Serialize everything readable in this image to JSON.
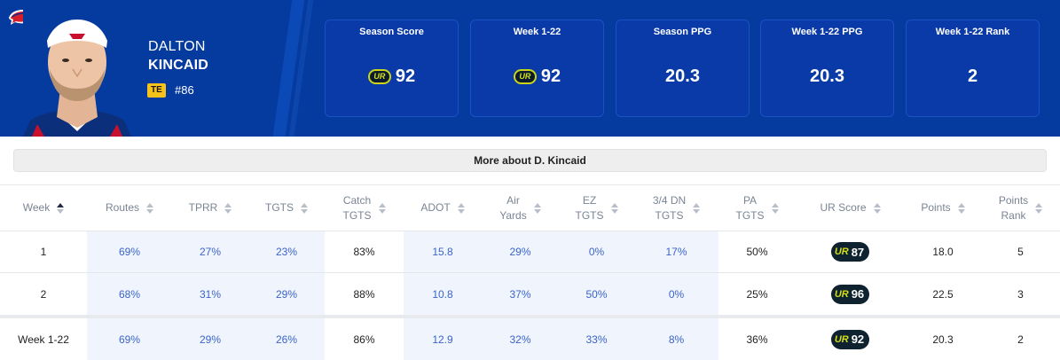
{
  "player": {
    "first_name": "DALTON",
    "last_name": "KINCAID",
    "position": "TE",
    "number": "#86"
  },
  "colors": {
    "header_bg": "#053a9e",
    "card_bg": "#0a3aa8",
    "badge_yellow": "#f6c21b",
    "link_blue": "#3b63c9",
    "highlight": "#f0f5fd",
    "ur_pill": "#0e2230",
    "ur_accent": "#d4df16"
  },
  "icons": {
    "team_logo": "buffalo-icon",
    "ur_logo": "ur-logo-icon",
    "sort": "sort-icon",
    "sort_active": "sort-up-icon"
  },
  "stat_cards": [
    {
      "title": "Season Score",
      "value": "92",
      "ur_logo": true,
      "ur_text": "UR"
    },
    {
      "title": "Week 1-22",
      "value": "92",
      "ur_logo": true,
      "ur_text": "UR"
    },
    {
      "title": "Season PPG",
      "value": "20.3",
      "ur_logo": false
    },
    {
      "title": "Week 1-22 PPG",
      "value": "20.3",
      "ur_logo": false
    },
    {
      "title": "Week 1-22 Rank",
      "value": "2",
      "ur_logo": false
    }
  ],
  "more_about": "More about D. Kincaid",
  "table": {
    "headers": [
      {
        "line1": "Week",
        "line2": ""
      },
      {
        "line1": "Routes",
        "line2": ""
      },
      {
        "line1": "TPRR",
        "line2": ""
      },
      {
        "line1": "TGTS",
        "line2": ""
      },
      {
        "line1": "Catch",
        "line2": "TGTS"
      },
      {
        "line1": "ADOT",
        "line2": ""
      },
      {
        "line1": "Air",
        "line2": "Yards"
      },
      {
        "line1": "EZ",
        "line2": "TGTS"
      },
      {
        "line1": "3/4 DN",
        "line2": "TGTS"
      },
      {
        "line1": "PA",
        "line2": "TGTS"
      },
      {
        "line1": "UR Score",
        "line2": ""
      },
      {
        "line1": "Points",
        "line2": ""
      },
      {
        "line1": "Points",
        "line2": "Rank"
      }
    ],
    "rows": [
      [
        "1",
        "69%",
        "27%",
        "23%",
        "83%",
        "15.8",
        "29%",
        "0%",
        "17%",
        "50%",
        "87",
        "18.0",
        "5"
      ],
      [
        "2",
        "68%",
        "31%",
        "29%",
        "88%",
        "10.8",
        "37%",
        "50%",
        "0%",
        "25%",
        "96",
        "22.5",
        "3"
      ]
    ],
    "total": [
      "Week 1-22",
      "69%",
      "29%",
      "26%",
      "86%",
      "12.9",
      "32%",
      "33%",
      "8%",
      "36%",
      "92",
      "20.3",
      "2"
    ],
    "ur_mark": "UR"
  }
}
